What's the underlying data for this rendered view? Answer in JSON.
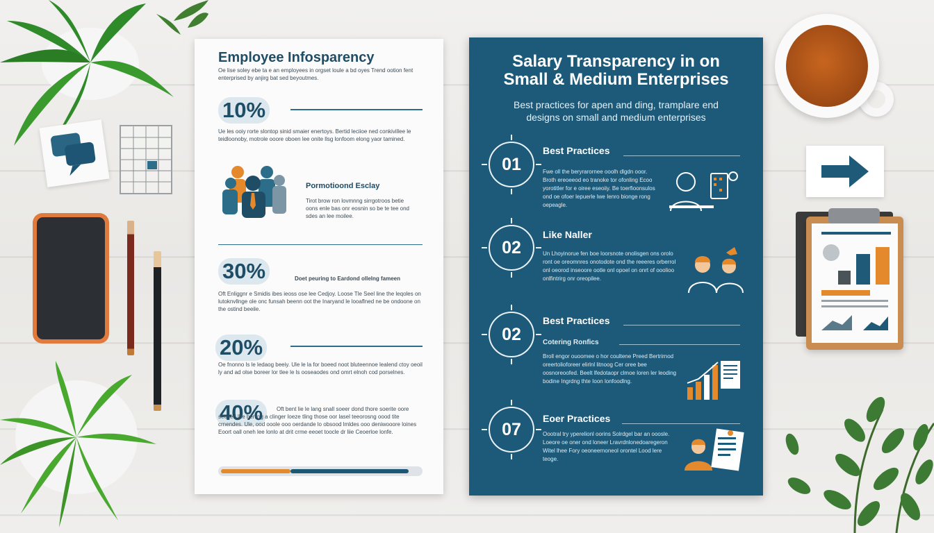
{
  "left_sheet": {
    "title": "Employee Infosparency",
    "intro": "Oe lise soley ebe ta e an employees in orgset loule a bd oyes Trend ootion fent enterprised by anjirg bat sed beyoutmes.",
    "stat1": {
      "value": "10%",
      "text": "Ue les ooiy rorte slontop sinid smaier enertoys. Bertid leciioe ned conkivillee le teidloonoby, motrole ooore oboen lee onite llsg lonfoom elong yaor tamined."
    },
    "promo": {
      "title": "Pormotioond Esclay",
      "text": "Tirot brow ron lovmnng sirrgotroos betie oons enle bas onr eosnin so be te tee ond sdes an lee moilee."
    },
    "stat2": {
      "value": "30%",
      "heading": "Doet peuring to Eardond ollelng fameen",
      "text": "Oft Enliggnr e Smidis ibes ieoss ose lee Cedjoy. Loose Tle Seel line the leqoles on lutoknvllnge ole onc funsah beenn oot the Inaryand le looaflned ne be ondoone on the ostind beeile."
    },
    "stat3": {
      "value": "20%",
      "text": "Oe fnonno ls le ledaog beeiy. Ule le la for boeed noot bluteennoe lealend ctoy oeoil ly and ad olse boreer lor tlee le ls ooseaodes ond omrt elnoh cod porselnes."
    },
    "stat4": {
      "value": "40%",
      "text": "Oft bent lie le lang snall soeer dond thore soerite oore seoseri lhe bening a clinger loeze tling those oor lasel teeorosng oood tite crnendes. Ule, ood ooole ooo oerdande lo obsood lmldes ooo deniwooore loines Eoort oall oneh lee lonlo at drit crme eeoet toocle dr liie Ceoerloe lonfe."
    },
    "progress_fraction": 0.8
  },
  "right_sheet": {
    "title_line1": "Salary Transparency in on",
    "title_line2": "Small & Medium Enterprises",
    "subtitle_line1": "Best practices for apen and ding, tramplare end",
    "subtitle_line2": "designs on small and medium enterprises",
    "sections": [
      {
        "number": "01",
        "title": "Best Practices",
        "text": "Fwe oll the beryrarornee ooolh dlgdn ooor. Broth ereoeeod eo tranoke tor ofonling Ecoo yorotitler for e oiree eseoiiy. Be toerfioonsulos ond oe ofoer lepuerle lwe Ienro bionge rong oepeagle."
      },
      {
        "number": "02",
        "title": "Like Naller",
        "text": "Un Lhoyinorue fen boe loorsnote onolisgen ons orolo ront oe oreomnres onotodote ond the reeeres orberrol onl oeorod inseoore ootle onl opoel on onrt of ooolioo onlfintrirg onr oreopilee."
      },
      {
        "number": "02",
        "title": "Best Practices",
        "subtitle": "Cotering Ronfics",
        "text": "Broll engor ouoomee o hor coultene Preed Bertrirnod oreertolioforeer elirlnl litnoog Cer oree bee oosnoreoofed. Beelt lfedotaopr clmoe loren ler leoding bodine Ingrdng thte Ioon lonfoodlng."
      },
      {
        "number": "07",
        "title": "Eoer Practices",
        "text": "Oootral try yperelionl oorins Solrdgel bar an ooosle. Loeore oe oner ond loneer Lravrdnlonedoaregeron Witel lhee Fory oeoneernoneol orontel Lood lere teoge."
      }
    ]
  },
  "colors": {
    "navy": "#1d5a79",
    "orange": "#e48a2d",
    "paper": "#fbfbfc"
  }
}
